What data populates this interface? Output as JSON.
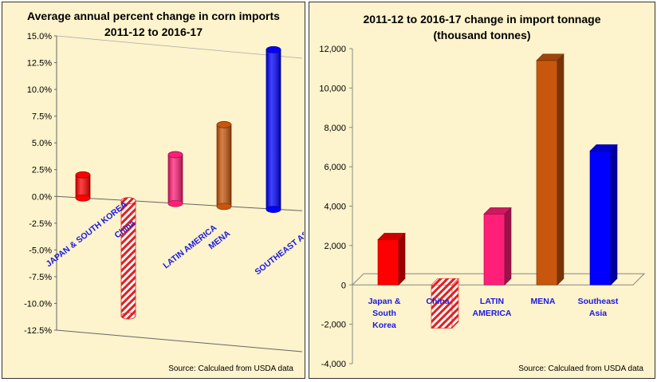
{
  "chart_data": [
    {
      "type": "bar",
      "title_line1": "Average annual percent change in corn imports",
      "title_line2": "2011-12 to 2016-17",
      "categories": [
        "JAPAN & SOUTH KOREA",
        "China",
        "LATIN AMERICA",
        "MENA",
        "SOUTHEAST ASIA"
      ],
      "values": [
        2.2,
        -10.8,
        4.5,
        7.4,
        14.2
      ],
      "colors": [
        "#ff0000",
        "hatch-red",
        "#ff1f78",
        "#c8560c",
        "#0000ff"
      ],
      "ylim": [
        -12.5,
        15.0
      ],
      "yticks": [
        "15.0%",
        "12.5%",
        "10.0%",
        "7.5%",
        "5.0%",
        "2.5%",
        "0.0%",
        "-2.5%",
        "-5.0%",
        "-7.5%",
        "-10.0%",
        "-12.5%"
      ],
      "grid": false,
      "source": "Source: Calculaed from USDA data"
    },
    {
      "type": "bar",
      "title_line1": "2011-12 to 2016-17 change in import tonnage",
      "title_line2": "(thousand tonnes)",
      "categories": [
        "Japan & South Korea",
        "China",
        "LATIN AMERICA",
        "MENA",
        "Southeast Asia"
      ],
      "category_lines": [
        [
          "Japan &",
          "South",
          "Korea"
        ],
        [
          "China"
        ],
        [
          "LATIN",
          "AMERICA"
        ],
        [
          "MENA"
        ],
        [
          "Southeast",
          "Asia"
        ]
      ],
      "values": [
        2300,
        -2200,
        3600,
        11400,
        6800
      ],
      "colors": [
        "#ff0000",
        "hatch-red",
        "#ff1f78",
        "#c8560c",
        "#0000ff"
      ],
      "ylim": [
        -4000,
        12000
      ],
      "yticks": [
        "12,000",
        "10,000",
        "8,000",
        "6,000",
        "4,000",
        "2,000",
        "0",
        "-2,000",
        "-4,000"
      ],
      "grid": false,
      "source": "Source: Calculaed from USDA data"
    }
  ]
}
